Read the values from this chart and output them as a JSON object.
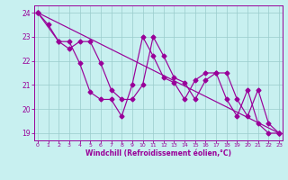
{
  "xlabel": "Windchill (Refroidissement éolien,°C)",
  "line_color": "#990099",
  "bg_color": "#c8f0f0",
  "grid_color": "#99cccc",
  "xlim_min": -0.3,
  "xlim_max": 23.3,
  "ylim_min": 18.7,
  "ylim_max": 24.3,
  "yticks": [
    19,
    20,
    21,
    22,
    23,
    24
  ],
  "xticks": [
    0,
    1,
    2,
    3,
    4,
    5,
    6,
    7,
    8,
    9,
    10,
    11,
    12,
    13,
    14,
    15,
    16,
    17,
    18,
    19,
    20,
    21,
    22,
    23
  ],
  "line1_x": [
    0,
    1,
    2,
    3,
    4,
    5,
    6,
    7,
    8,
    9,
    10,
    11,
    12,
    13,
    14,
    15,
    16,
    17,
    18,
    19,
    20,
    21,
    22,
    23
  ],
  "line1_y": [
    24.0,
    23.5,
    22.8,
    22.8,
    21.9,
    20.7,
    20.4,
    20.4,
    19.7,
    21.0,
    23.0,
    22.2,
    21.3,
    21.1,
    20.4,
    21.2,
    21.5,
    21.5,
    20.4,
    19.7,
    20.8,
    19.4,
    19.0,
    19.0
  ],
  "line2_x": [
    0,
    2,
    3,
    4,
    5,
    6,
    7,
    8,
    9,
    10,
    11,
    12,
    13,
    14,
    15,
    16,
    17,
    18,
    19,
    20,
    21,
    22,
    23
  ],
  "line2_y": [
    24.0,
    22.8,
    22.5,
    22.8,
    22.8,
    21.9,
    20.8,
    20.4,
    20.4,
    21.0,
    23.0,
    22.2,
    21.3,
    21.1,
    20.4,
    21.2,
    21.5,
    21.5,
    20.4,
    19.7,
    20.8,
    19.4,
    19.0
  ],
  "line3_x": [
    0,
    23
  ],
  "line3_y": [
    24.0,
    19.0
  ]
}
